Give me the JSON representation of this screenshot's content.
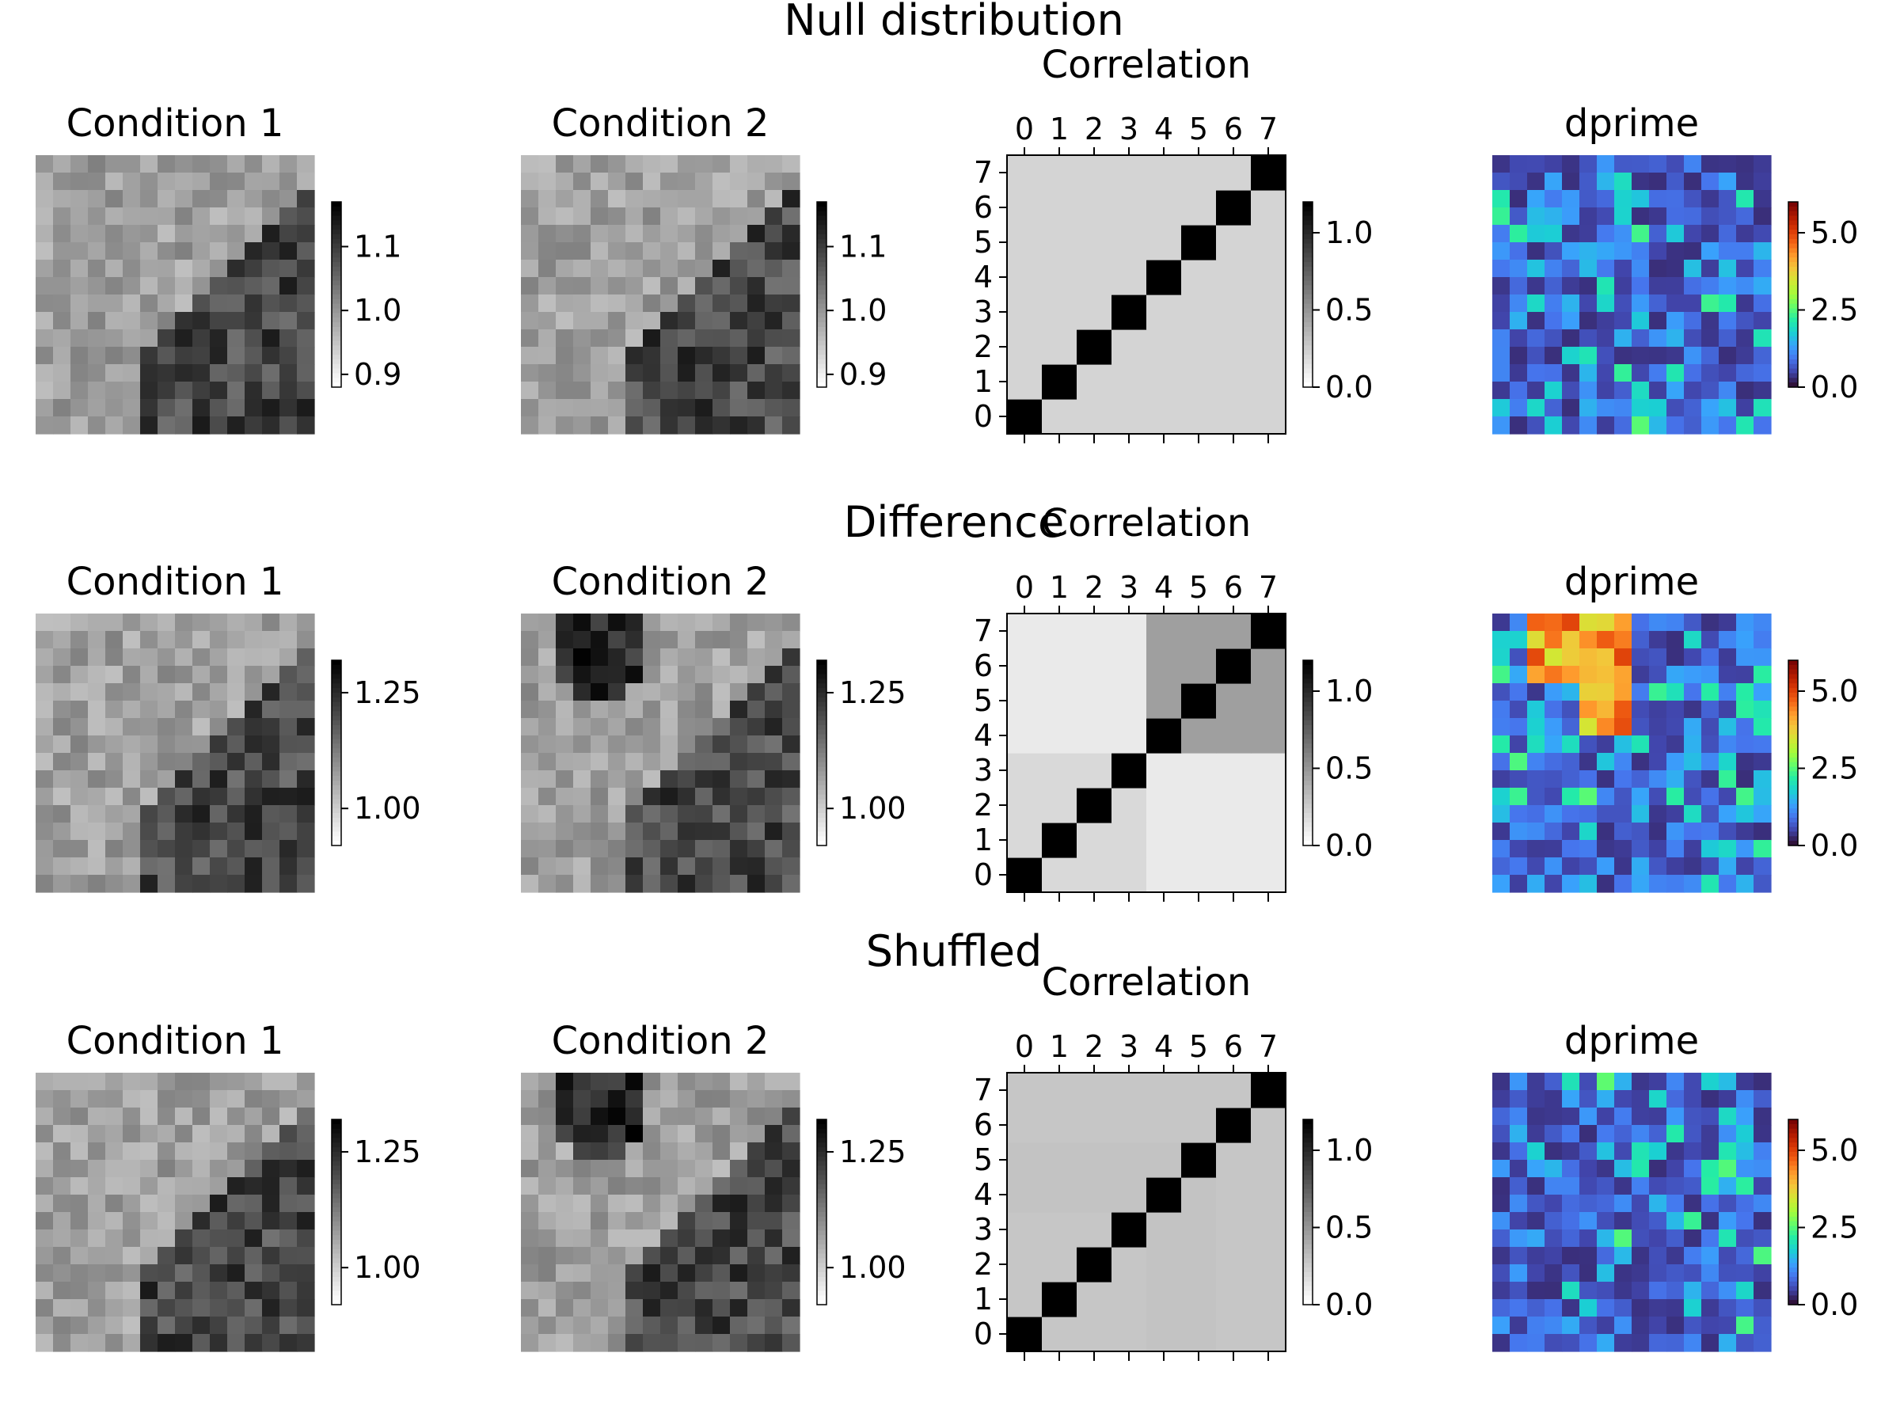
{
  "chart_data": [
    {
      "row_title": "Null distribution",
      "panels": [
        {
          "type": "heatmap",
          "title": "Condition 1",
          "colormap": "Greys",
          "colorbar_ticks": [
            "1.1",
            "1.0",
            "0.9"
          ],
          "clim": [
            0.88,
            1.17
          ],
          "pattern": "lower-right-block"
        },
        {
          "type": "heatmap",
          "title": "Condition 2",
          "colormap": "Greys",
          "colorbar_ticks": [
            "1.1",
            "1.0",
            "0.9"
          ],
          "clim": [
            0.88,
            1.17
          ],
          "pattern": "lower-right-block"
        },
        {
          "type": "heatmap",
          "title": "Correlation",
          "colormap": "Greys",
          "size": 8,
          "xticks": [
            "0",
            "1",
            "2",
            "3",
            "4",
            "5",
            "6",
            "7"
          ],
          "yticks": [
            "0",
            "1",
            "2",
            "3",
            "4",
            "5",
            "6",
            "7"
          ],
          "colorbar_ticks": [
            "1.0",
            "0.5",
            "0.0"
          ],
          "clim": [
            0,
            1.2
          ],
          "values": [
            [
              1.0,
              0.2,
              0.2,
              0.2,
              0.2,
              0.2,
              0.2,
              0.2
            ],
            [
              0.2,
              1.0,
              0.2,
              0.2,
              0.2,
              0.2,
              0.2,
              0.2
            ],
            [
              0.2,
              0.2,
              1.0,
              0.2,
              0.2,
              0.2,
              0.2,
              0.2
            ],
            [
              0.2,
              0.2,
              0.2,
              1.0,
              0.2,
              0.2,
              0.2,
              0.2
            ],
            [
              0.2,
              0.2,
              0.2,
              0.2,
              1.0,
              0.2,
              0.2,
              0.2
            ],
            [
              0.2,
              0.2,
              0.2,
              0.2,
              0.2,
              1.0,
              0.2,
              0.2
            ],
            [
              0.2,
              0.2,
              0.2,
              0.2,
              0.2,
              0.2,
              1.0,
              0.2
            ],
            [
              0.2,
              0.2,
              0.2,
              0.2,
              0.2,
              0.2,
              0.2,
              1.0
            ]
          ]
        },
        {
          "type": "heatmap",
          "title": "dprime",
          "colormap": "turbo",
          "colorbar_ticks": [
            "5.0",
            "2.5",
            "0.0"
          ],
          "clim": [
            0,
            6
          ],
          "pattern": "noise"
        }
      ]
    },
    {
      "row_title": "Difference",
      "panels": [
        {
          "type": "heatmap",
          "title": "Condition 1",
          "colormap": "Greys",
          "colorbar_ticks": [
            "1.25",
            "1.00"
          ],
          "clim": [
            0.92,
            1.32
          ],
          "pattern": "lower-right-block"
        },
        {
          "type": "heatmap",
          "title": "Condition 2",
          "colormap": "Greys",
          "colorbar_ticks": [
            "1.25",
            "1.00"
          ],
          "clim": [
            0.92,
            1.32
          ],
          "pattern": "upper-left-and-lower-right"
        },
        {
          "type": "heatmap",
          "title": "Correlation",
          "colormap": "Greys",
          "size": 8,
          "xticks": [
            "0",
            "1",
            "2",
            "3",
            "4",
            "5",
            "6",
            "7"
          ],
          "yticks": [
            "0",
            "1",
            "2",
            "3",
            "4",
            "5",
            "6",
            "7"
          ],
          "colorbar_ticks": [
            "1.0",
            "0.5",
            "0.0"
          ],
          "clim": [
            0,
            1.2
          ],
          "values": [
            [
              1.0,
              0.18,
              0.18,
              0.18,
              0.1,
              0.1,
              0.1,
              0.1
            ],
            [
              0.18,
              1.0,
              0.18,
              0.18,
              0.1,
              0.1,
              0.1,
              0.1
            ],
            [
              0.18,
              0.18,
              1.0,
              0.18,
              0.1,
              0.1,
              0.1,
              0.1
            ],
            [
              0.18,
              0.18,
              0.18,
              1.0,
              0.1,
              0.1,
              0.1,
              0.1
            ],
            [
              0.1,
              0.1,
              0.1,
              0.1,
              1.0,
              0.45,
              0.45,
              0.45
            ],
            [
              0.1,
              0.1,
              0.1,
              0.1,
              0.45,
              1.0,
              0.45,
              0.45
            ],
            [
              0.1,
              0.1,
              0.1,
              0.1,
              0.45,
              0.45,
              1.0,
              0.45
            ],
            [
              0.1,
              0.1,
              0.1,
              0.1,
              0.45,
              0.45,
              0.45,
              1.0
            ]
          ]
        },
        {
          "type": "heatmap",
          "title": "dprime",
          "colormap": "turbo",
          "colorbar_ticks": [
            "5.0",
            "2.5",
            "0.0"
          ],
          "clim": [
            0,
            6
          ],
          "pattern": "noise-with-hotspot"
        }
      ]
    },
    {
      "row_title": "Shuffled",
      "panels": [
        {
          "type": "heatmap",
          "title": "Condition 1",
          "colormap": "Greys",
          "colorbar_ticks": [
            "1.25",
            "1.00"
          ],
          "clim": [
            0.92,
            1.32
          ],
          "pattern": "lower-right-block"
        },
        {
          "type": "heatmap",
          "title": "Condition 2",
          "colormap": "Greys",
          "colorbar_ticks": [
            "1.25",
            "1.00"
          ],
          "clim": [
            0.92,
            1.32
          ],
          "pattern": "upper-left-and-lower-right"
        },
        {
          "type": "heatmap",
          "title": "Correlation",
          "colormap": "Greys",
          "size": 8,
          "xticks": [
            "0",
            "1",
            "2",
            "3",
            "4",
            "5",
            "6",
            "7"
          ],
          "yticks": [
            "0",
            "1",
            "2",
            "3",
            "4",
            "5",
            "6",
            "7"
          ],
          "colorbar_ticks": [
            "1.0",
            "0.5",
            "0.0"
          ],
          "clim": [
            0,
            1.2
          ],
          "values": [
            [
              1.0,
              0.27,
              0.27,
              0.27,
              0.28,
              0.28,
              0.27,
              0.27
            ],
            [
              0.27,
              1.0,
              0.27,
              0.27,
              0.28,
              0.28,
              0.27,
              0.27
            ],
            [
              0.27,
              0.27,
              1.0,
              0.27,
              0.28,
              0.28,
              0.27,
              0.27
            ],
            [
              0.27,
              0.27,
              0.27,
              1.0,
              0.28,
              0.28,
              0.27,
              0.27
            ],
            [
              0.28,
              0.28,
              0.28,
              0.28,
              1.0,
              0.28,
              0.27,
              0.27
            ],
            [
              0.28,
              0.28,
              0.28,
              0.28,
              0.28,
              1.0,
              0.27,
              0.27
            ],
            [
              0.27,
              0.27,
              0.27,
              0.27,
              0.27,
              0.27,
              1.0,
              0.27
            ],
            [
              0.27,
              0.27,
              0.27,
              0.27,
              0.27,
              0.27,
              0.27,
              1.0
            ]
          ]
        },
        {
          "type": "heatmap",
          "title": "dprime",
          "colormap": "turbo",
          "colorbar_ticks": [
            "5.0",
            "2.5",
            "0.0"
          ],
          "clim": [
            0,
            6
          ],
          "pattern": "noise"
        }
      ]
    }
  ]
}
